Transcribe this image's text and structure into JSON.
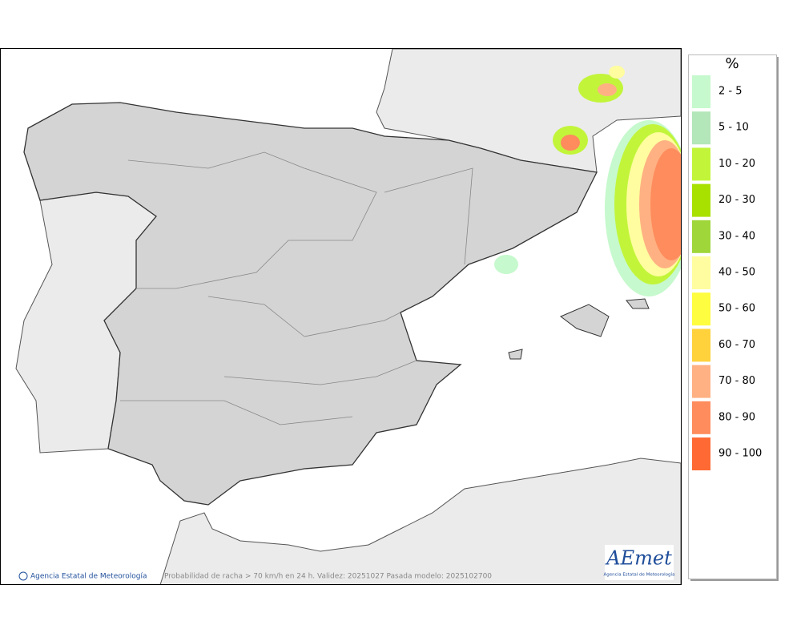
{
  "legend": {
    "title": "%",
    "items": [
      {
        "label": "2 - 5",
        "color": "#c6f9cd"
      },
      {
        "label": "5 - 10",
        "color": "#b3e6b8"
      },
      {
        "label": "10 - 20",
        "color": "#c2f53a"
      },
      {
        "label": "20 - 30",
        "color": "#a8e000"
      },
      {
        "label": "30 - 40",
        "color": "#9fd63a"
      },
      {
        "label": "40 - 50",
        "color": "#fffd9f"
      },
      {
        "label": "50 - 60",
        "color": "#fffd40"
      },
      {
        "label": "60 - 70",
        "color": "#ffd23c"
      },
      {
        "label": "70 - 80",
        "color": "#ffb183"
      },
      {
        "label": "80 - 90",
        "color": "#ff8c5c"
      },
      {
        "label": "90 - 100",
        "color": "#ff6a34"
      }
    ]
  },
  "map": {
    "credit": "Agencia Estatal de Meteorología",
    "caption": "Probabilidad de racha > 70 km/h en 24 h. Validez: 20251027 Pasada modelo: 2025102700",
    "logo": {
      "name": "AEmet",
      "subtitle": "Agencia Estatal de Meteorología"
    }
  }
}
